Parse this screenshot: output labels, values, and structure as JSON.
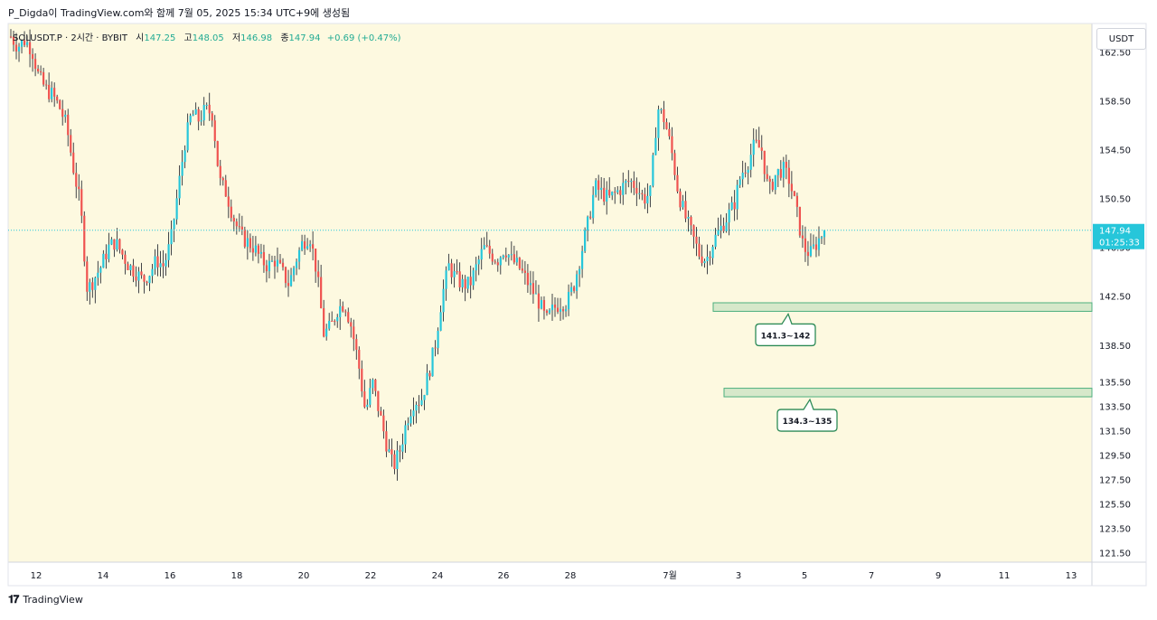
{
  "header": {
    "caption": "P_Digda이 TradingView.com와 함께 7월 05, 2025 15:34 UTC+9에 생성됨"
  },
  "legend": {
    "symbol": "SOLUSDT.P · 2시간 · BYBIT",
    "open_label": "시",
    "open": "147.25",
    "high_label": "고",
    "high": "148.05",
    "low_label": "저",
    "low": "146.98",
    "close_label": "종",
    "close": "147.94",
    "change": "+0.69 (+0.47%)"
  },
  "currency_button": "USDT",
  "footer": {
    "brand": "TradingView"
  },
  "colors": {
    "background": "#fdf9e0",
    "up": "#26c6da",
    "down": "#ef5350",
    "zone": "#4caf7d"
  },
  "chart_data": {
    "type": "candlestick",
    "ylim": [
      120.5,
      164.0
    ],
    "y_ticks": [
      "162.50",
      "158.50",
      "154.50",
      "150.50",
      "146.50",
      "142.50",
      "138.50",
      "135.50",
      "133.50",
      "131.50",
      "129.50",
      "127.50",
      "125.50",
      "123.50",
      "121.50"
    ],
    "x_ticks": [
      "12",
      "14",
      "16",
      "18",
      "20",
      "22",
      "24",
      "26",
      "28",
      "7월",
      "3",
      "5",
      "7",
      "9",
      "11",
      "13"
    ],
    "last_price": {
      "value": 147.94,
      "label": "147.94",
      "countdown": "01:25:33"
    },
    "close_path": [
      [
        0,
        163.8
      ],
      [
        1,
        163.0
      ],
      [
        2,
        163.5
      ],
      [
        3,
        162.8
      ],
      [
        4,
        160.5
      ],
      [
        5,
        159.5
      ],
      [
        6,
        159.0
      ],
      [
        7,
        158.0
      ],
      [
        8,
        156.5
      ],
      [
        9,
        153.0
      ],
      [
        10,
        150.0
      ],
      [
        11,
        143.0
      ],
      [
        12,
        144.0
      ],
      [
        13,
        145.0
      ],
      [
        14,
        146.5
      ],
      [
        15,
        147.0
      ],
      [
        16,
        146.0
      ],
      [
        17,
        145.0
      ],
      [
        18,
        144.5
      ],
      [
        19,
        143.8
      ],
      [
        20,
        144.5
      ],
      [
        21,
        145.5
      ],
      [
        22,
        145.0
      ],
      [
        23,
        147.0
      ],
      [
        24,
        151.0
      ],
      [
        25,
        155.0
      ],
      [
        26,
        157.5
      ],
      [
        27,
        157.0
      ],
      [
        28,
        157.8
      ],
      [
        29,
        157.5
      ],
      [
        30,
        152.0
      ],
      [
        31,
        151.0
      ],
      [
        32,
        149.0
      ],
      [
        33,
        147.5
      ],
      [
        34,
        147.0
      ],
      [
        35,
        146.5
      ],
      [
        36,
        145.5
      ],
      [
        37,
        145.0
      ],
      [
        38,
        145.5
      ],
      [
        39,
        144.5
      ],
      [
        40,
        143.5
      ],
      [
        41,
        145.5
      ],
      [
        42,
        147.0
      ],
      [
        43,
        147.5
      ],
      [
        44,
        144.5
      ],
      [
        45,
        139.5
      ],
      [
        46,
        140.0
      ],
      [
        47,
        141.5
      ],
      [
        48,
        142.0
      ],
      [
        49,
        140.0
      ],
      [
        50,
        137.0
      ],
      [
        51,
        133.0
      ],
      [
        52,
        135.5
      ],
      [
        53,
        133.0
      ],
      [
        54,
        130.5
      ],
      [
        55,
        128.5
      ],
      [
        56,
        130.0
      ],
      [
        57,
        132.5
      ],
      [
        58,
        134.0
      ],
      [
        59,
        134.0
      ],
      [
        60,
        136.0
      ],
      [
        61,
        138.5
      ],
      [
        62,
        142.5
      ],
      [
        63,
        145.0
      ],
      [
        64,
        144.0
      ],
      [
        65,
        143.5
      ],
      [
        66,
        143.5
      ],
      [
        67,
        145.0
      ],
      [
        68,
        146.5
      ],
      [
        69,
        146.0
      ],
      [
        70,
        145.5
      ],
      [
        71,
        146.5
      ],
      [
        72,
        145.5
      ],
      [
        73,
        145.0
      ],
      [
        74,
        144.0
      ],
      [
        75,
        143.0
      ],
      [
        76,
        142.0
      ],
      [
        77,
        140.5
      ],
      [
        78,
        141.5
      ],
      [
        79,
        142.0
      ],
      [
        80,
        142.0
      ],
      [
        81,
        143.5
      ],
      [
        82,
        146.0
      ],
      [
        83,
        148.5
      ],
      [
        84,
        151.5
      ],
      [
        85,
        151.0
      ],
      [
        86,
        150.5
      ],
      [
        87,
        151.0
      ],
      [
        88,
        151.5
      ],
      [
        89,
        152.0
      ],
      [
        90,
        151.5
      ],
      [
        91,
        150.5
      ],
      [
        92,
        151.0
      ],
      [
        93,
        158.0
      ],
      [
        94,
        157.0
      ],
      [
        95,
        154.5
      ],
      [
        96,
        151.0
      ],
      [
        97,
        149.0
      ],
      [
        98,
        147.5
      ],
      [
        99,
        146.0
      ],
      [
        100,
        145.5
      ],
      [
        101,
        147.0
      ],
      [
        102,
        148.0
      ],
      [
        103,
        149.0
      ],
      [
        104,
        150.0
      ],
      [
        105,
        152.5
      ],
      [
        106,
        153.5
      ],
      [
        107,
        155.0
      ],
      [
        108,
        154.5
      ],
      [
        109,
        151.0
      ],
      [
        110,
        152.5
      ],
      [
        111,
        153.0
      ],
      [
        112,
        152.0
      ],
      [
        113,
        149.5
      ],
      [
        114,
        146.5
      ],
      [
        115,
        146.0
      ],
      [
        116,
        147.0
      ],
      [
        117,
        147.94
      ]
    ],
    "zones": [
      {
        "label": "141.3~142",
        "low": 141.3,
        "high": 142.0
      },
      {
        "label": "134.3~135",
        "low": 134.3,
        "high": 135.0
      }
    ]
  }
}
